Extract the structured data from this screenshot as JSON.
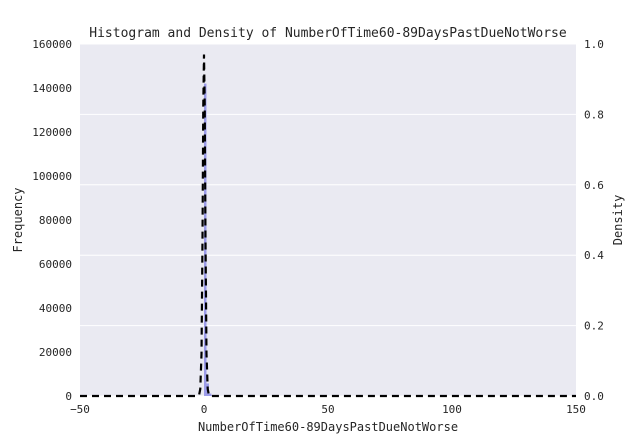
{
  "chart_data": {
    "type": "bar",
    "title": "Histogram and Density of NumberOfTime60-89DaysPastDueNotWorse",
    "xlabel": "NumberOfTime60-89DaysPastDueNotWorse",
    "ylabel": "Frequency",
    "y2label": "Density",
    "xlim": [
      -50,
      150
    ],
    "ylim": [
      0,
      160000
    ],
    "y2lim": [
      0,
      1.0
    ],
    "x_ticks": [
      -50,
      0,
      50,
      100,
      150
    ],
    "x_tick_labels": [
      "−50",
      "0",
      "50",
      "100",
      "150"
    ],
    "y_ticks": [
      0,
      20000,
      40000,
      60000,
      80000,
      100000,
      120000,
      140000,
      160000
    ],
    "y_tick_labels": [
      "0",
      "20000",
      "40000",
      "60000",
      "80000",
      "100000",
      "120000",
      "140000",
      "160000"
    ],
    "y2_ticks": [
      0.0,
      0.2,
      0.4,
      0.6,
      0.8,
      1.0
    ],
    "y2_tick_labels": [
      "0.0",
      "0.2",
      "0.4",
      "0.6",
      "0.8",
      "1.0"
    ],
    "grid": true,
    "style": {
      "background": "#eaeaf2",
      "grid_color": "#ffffff",
      "hist_color": "#8d8de6",
      "kde_color": "#000000"
    },
    "histogram": {
      "bin_edges": [
        0,
        1,
        2,
        3,
        4,
        5,
        6,
        7,
        8,
        9,
        10
      ],
      "counts": [
        142000,
        5700,
        1100,
        320,
        100,
        35,
        15,
        10,
        5,
        3
      ]
    },
    "density": {
      "x": [
        -50,
        -3,
        -2,
        -1.5,
        -1,
        -0.6,
        -0.3,
        0,
        0.3,
        0.6,
        1,
        1.5,
        2,
        3,
        4,
        150
      ],
      "y": [
        0.0,
        0.0,
        0.002,
        0.02,
        0.12,
        0.45,
        0.82,
        0.97,
        0.82,
        0.45,
        0.12,
        0.02,
        0.002,
        0.0,
        0.0,
        0.0
      ]
    }
  }
}
